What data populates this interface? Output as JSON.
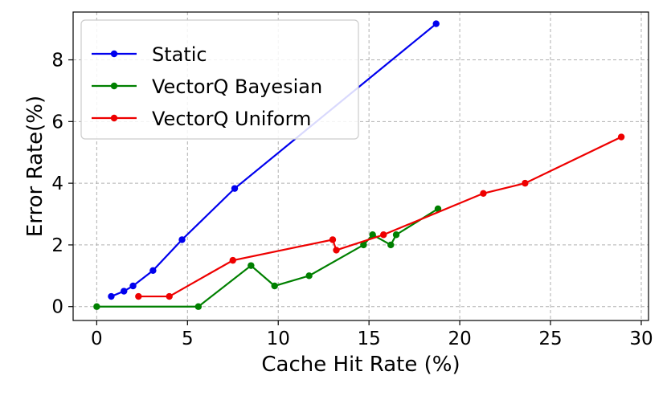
{
  "chart_data": {
    "type": "line",
    "title": "",
    "xlabel": "Cache Hit Rate (%)",
    "ylabel": "Error Rate(%)",
    "xlim": [
      -1.3,
      30.4
    ],
    "ylim": [
      -0.45,
      9.55
    ],
    "xticks": [
      0,
      5,
      10,
      15,
      20,
      25,
      30
    ],
    "yticks": [
      0,
      2,
      4,
      6,
      8
    ],
    "xtick_labels": [
      "0",
      "5",
      "10",
      "15",
      "20",
      "25",
      "30"
    ],
    "ytick_labels": [
      "0",
      "2",
      "4",
      "6",
      "8"
    ],
    "grid": true,
    "legend_position": "top-left",
    "series": [
      {
        "name": "Static",
        "color": "#0000ee",
        "x": [
          0.8,
          1.5,
          2.0,
          3.1,
          4.7,
          7.6,
          18.7
        ],
        "y": [
          0.33,
          0.5,
          0.67,
          1.17,
          2.17,
          3.83,
          9.17
        ]
      },
      {
        "name": "VectorQ Bayesian",
        "color": "#008000",
        "x": [
          0.0,
          5.6,
          8.5,
          9.8,
          11.7,
          14.7,
          15.2,
          16.2,
          16.5,
          18.8
        ],
        "y": [
          0.0,
          0.0,
          1.33,
          0.67,
          1.0,
          2.0,
          2.33,
          2.0,
          2.33,
          3.17
        ]
      },
      {
        "name": "VectorQ Uniform",
        "color": "#ee0000",
        "x": [
          2.3,
          4.0,
          7.5,
          13.0,
          13.2,
          15.8,
          21.3,
          23.6,
          28.9
        ],
        "y": [
          0.33,
          0.33,
          1.5,
          2.17,
          1.83,
          2.33,
          3.67,
          4.0,
          5.5
        ]
      }
    ]
  }
}
